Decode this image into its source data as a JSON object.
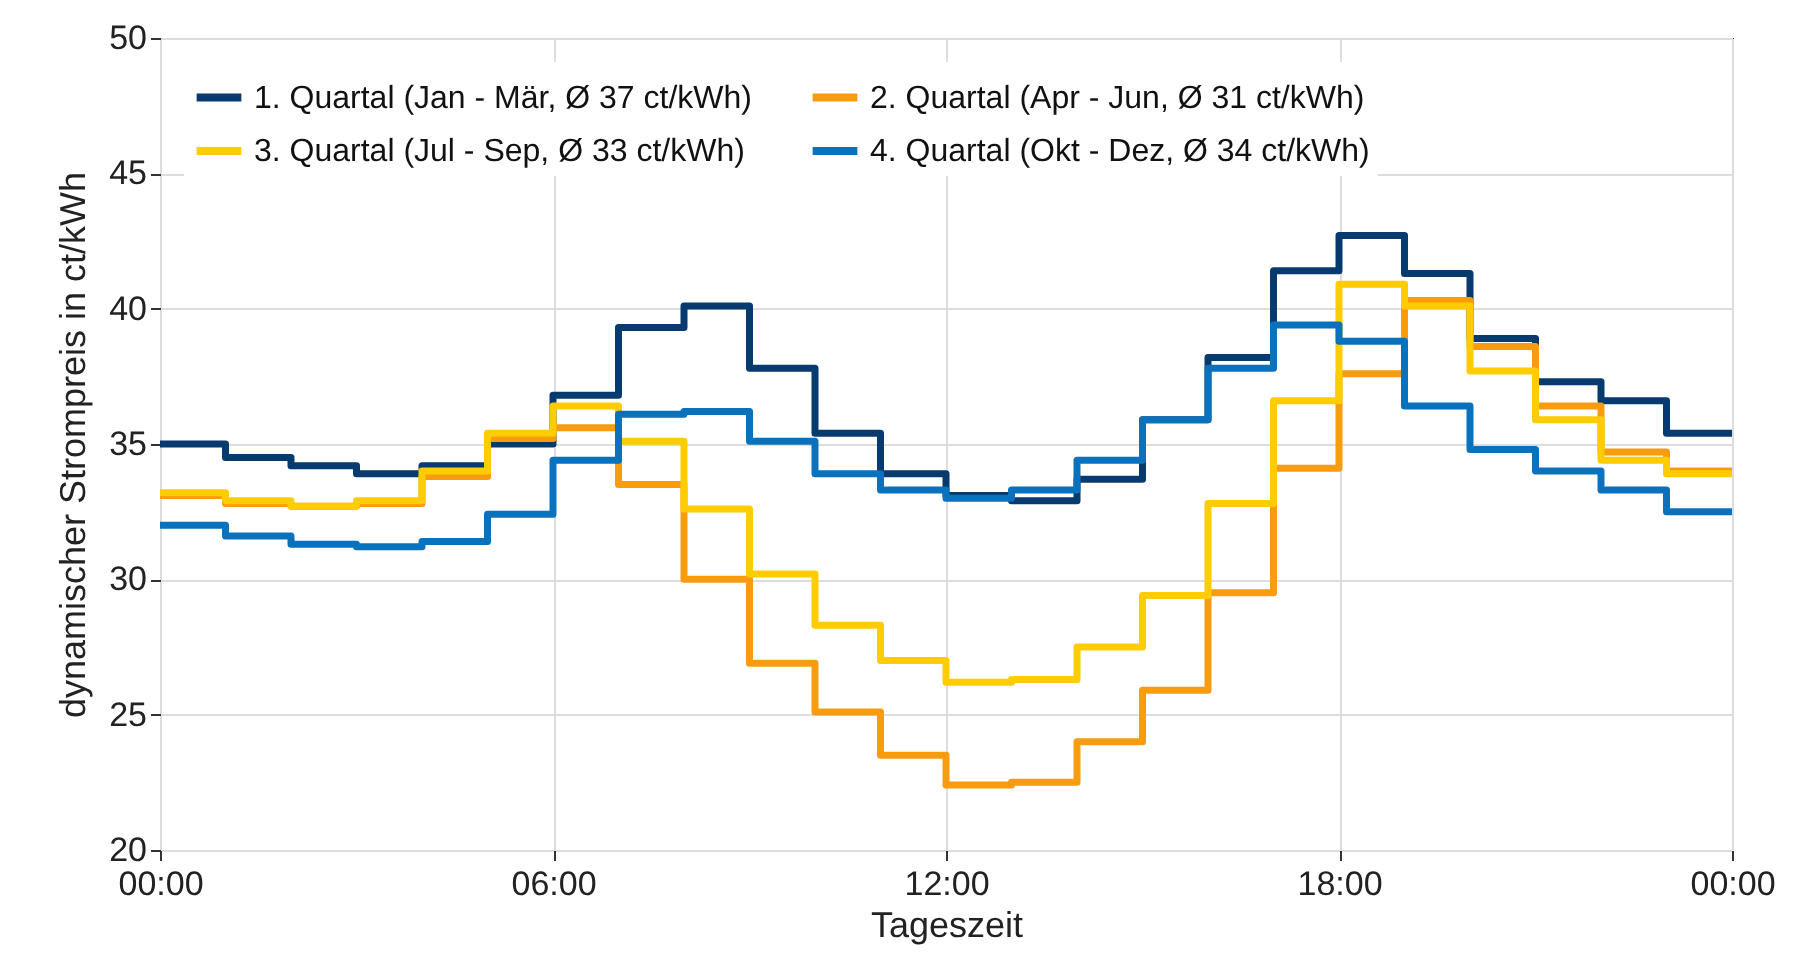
{
  "chart_data": {
    "type": "step",
    "xlabel": "Tageszeit",
    "ylabel": "dynamischer Strompreis in ct/kWh",
    "xlim": [
      0,
      24
    ],
    "xticks": [
      {
        "value": 0,
        "label": "00:00"
      },
      {
        "value": 6,
        "label": "06:00"
      },
      {
        "value": 12,
        "label": "12:00"
      },
      {
        "value": 18,
        "label": "18:00"
      },
      {
        "value": 24,
        "label": "00:00"
      }
    ],
    "ylim": [
      20,
      50
    ],
    "yticks": [
      20,
      25,
      30,
      35,
      40,
      45,
      50
    ],
    "grid": true,
    "legend": "top left",
    "line_style": "solid",
    "x": [
      0,
      1,
      2,
      3,
      4,
      5,
      6,
      7,
      8,
      9,
      10,
      11,
      12,
      13,
      14,
      15,
      16,
      17,
      18,
      19,
      20,
      21,
      22,
      23,
      24
    ],
    "series": [
      {
        "name": "1. Quartal (Jan - Mär, Ø 37 ct/kWh)",
        "color": "#073a6e",
        "values": [
          35.0,
          34.5,
          34.2,
          33.9,
          34.2,
          35.0,
          36.8,
          39.3,
          40.1,
          37.8,
          35.4,
          33.9,
          33.1,
          32.9,
          33.7,
          35.9,
          38.2,
          41.4,
          42.7,
          41.3,
          38.9,
          37.3,
          36.6,
          35.4,
          35.4
        ]
      },
      {
        "name": "2. Quartal (Apr - Jun, Ø 31 ct/kWh)",
        "color": "#f79c0f",
        "values": [
          33.1,
          32.8,
          32.7,
          32.8,
          33.8,
          35.2,
          35.6,
          33.5,
          30.0,
          26.9,
          25.1,
          23.5,
          22.4,
          22.5,
          24.0,
          25.9,
          29.5,
          34.1,
          37.6,
          40.3,
          38.6,
          36.4,
          34.7,
          34.0,
          34.0
        ]
      },
      {
        "name": "3. Quartal (Jul - Sep, Ø 33 ct/kWh)",
        "color": "#ffcc00",
        "values": [
          33.2,
          32.9,
          32.7,
          32.9,
          34.0,
          35.4,
          36.4,
          35.1,
          32.6,
          30.2,
          28.3,
          27.0,
          26.2,
          26.3,
          27.5,
          29.4,
          32.8,
          36.6,
          40.9,
          40.1,
          37.7,
          35.9,
          34.4,
          33.9,
          33.9
        ]
      },
      {
        "name": "4. Quartal (Okt - Dez, Ø 34 ct/kWh)",
        "color": "#0a72bd",
        "values": [
          32.0,
          31.6,
          31.3,
          31.2,
          31.4,
          32.4,
          34.4,
          36.1,
          36.2,
          35.1,
          33.9,
          33.3,
          33.0,
          33.3,
          34.4,
          35.9,
          37.8,
          39.4,
          38.8,
          36.4,
          34.8,
          34.0,
          33.3,
          32.5,
          32.5
        ]
      }
    ]
  }
}
